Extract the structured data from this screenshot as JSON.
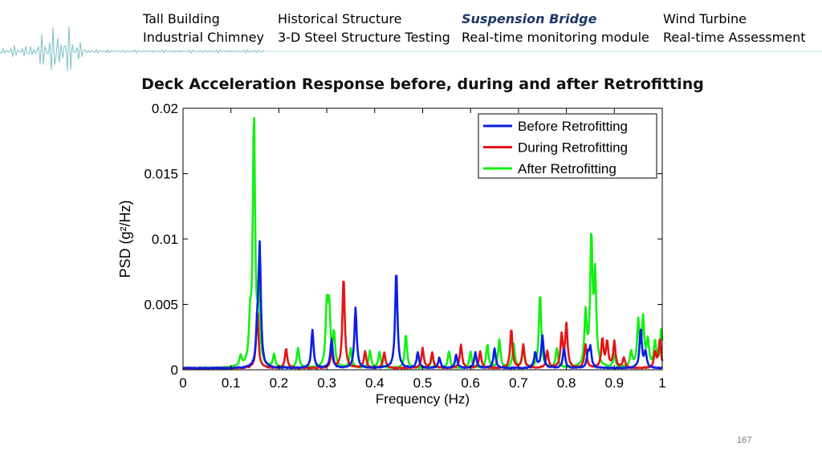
{
  "nav": {
    "col1": [
      "Tall Building",
      "Industrial Chimney"
    ],
    "col2": [
      "Historical Structure",
      "3-D Steel Structure Testing"
    ],
    "col3": [
      "Suspension Bridge",
      "Real-time monitoring module"
    ],
    "col4": [
      "Wind Turbine",
      "Real-time Assessment"
    ],
    "active": "Suspension Bridge"
  },
  "page_number": "167",
  "colors": {
    "before": "#0a1ee6",
    "during": "#e61414",
    "after": "#14f014",
    "active_nav": "#1f3864"
  },
  "chart_data": {
    "type": "line",
    "title": "Deck Acceleration Response before, during and after Retrofitting",
    "xlabel": "Frequency (Hz)",
    "ylabel": "PSD (g²/Hz)",
    "xlim": [
      0,
      1
    ],
    "ylim": [
      0,
      0.02
    ],
    "xticks": [
      "0",
      "0.1",
      "0.2",
      "0.3",
      "0.4",
      "0.5",
      "0.6",
      "0.7",
      "0.8",
      "0.9",
      "1"
    ],
    "yticks": [
      "0",
      "0.005",
      "0.01",
      "0.015",
      "0.02"
    ],
    "legend_position": "top-right",
    "grid": false,
    "series": [
      {
        "name": "Before Retrofitting",
        "color": "#0a1ee6",
        "peaks": [
          [
            0.16,
            0.0091
          ],
          [
            0.155,
            0.0025
          ],
          [
            0.27,
            0.0029
          ],
          [
            0.31,
            0.0022
          ],
          [
            0.36,
            0.0046
          ],
          [
            0.445,
            0.0075
          ],
          [
            0.49,
            0.0012
          ],
          [
            0.535,
            0.0008
          ],
          [
            0.57,
            0.001
          ],
          [
            0.61,
            0.0012
          ],
          [
            0.65,
            0.0015
          ],
          [
            0.735,
            0.0012
          ],
          [
            0.75,
            0.0025
          ],
          [
            0.795,
            0.0015
          ],
          [
            0.845,
            0.001
          ],
          [
            0.85,
            0.0015
          ],
          [
            0.955,
            0.003
          ],
          [
            0.965,
            0.0012
          ]
        ]
      },
      {
        "name": "During Retrofitting",
        "color": "#e61414",
        "peaks": [
          [
            0.155,
            0.0045
          ],
          [
            0.215,
            0.0015
          ],
          [
            0.31,
            0.0012
          ],
          [
            0.335,
            0.007
          ],
          [
            0.38,
            0.0013
          ],
          [
            0.42,
            0.0012
          ],
          [
            0.5,
            0.0015
          ],
          [
            0.52,
            0.0012
          ],
          [
            0.58,
            0.0018
          ],
          [
            0.62,
            0.0013
          ],
          [
            0.685,
            0.003
          ],
          [
            0.71,
            0.0018
          ],
          [
            0.76,
            0.0013
          ],
          [
            0.79,
            0.0025
          ],
          [
            0.8,
            0.0033
          ],
          [
            0.84,
            0.0018
          ],
          [
            0.875,
            0.0022
          ],
          [
            0.885,
            0.002
          ],
          [
            0.9,
            0.002
          ],
          [
            0.92,
            0.0008
          ],
          [
            0.985,
            0.0012
          ],
          [
            0.995,
            0.0022
          ]
        ]
      },
      {
        "name": "After Retrofitting",
        "color": "#14f014",
        "peaks": [
          [
            0.12,
            0.0008
          ],
          [
            0.14,
            0.003
          ],
          [
            0.148,
            0.0192
          ],
          [
            0.158,
            0.0055
          ],
          [
            0.19,
            0.001
          ],
          [
            0.24,
            0.0015
          ],
          [
            0.3,
            0.0045
          ],
          [
            0.305,
            0.0043
          ],
          [
            0.315,
            0.0025
          ],
          [
            0.35,
            0.0015
          ],
          [
            0.39,
            0.0013
          ],
          [
            0.41,
            0.0012
          ],
          [
            0.465,
            0.0026
          ],
          [
            0.52,
            0.001
          ],
          [
            0.555,
            0.0013
          ],
          [
            0.6,
            0.0012
          ],
          [
            0.635,
            0.0018
          ],
          [
            0.66,
            0.0022
          ],
          [
            0.69,
            0.0018
          ],
          [
            0.71,
            0.0015
          ],
          [
            0.745,
            0.0057
          ],
          [
            0.78,
            0.0015
          ],
          [
            0.84,
            0.004
          ],
          [
            0.852,
            0.0098
          ],
          [
            0.86,
            0.0068
          ],
          [
            0.9,
            0.001
          ],
          [
            0.935,
            0.0012
          ],
          [
            0.95,
            0.0035
          ],
          [
            0.96,
            0.0037
          ],
          [
            0.97,
            0.002
          ],
          [
            0.985,
            0.002
          ],
          [
            0.998,
            0.003
          ]
        ]
      }
    ]
  }
}
